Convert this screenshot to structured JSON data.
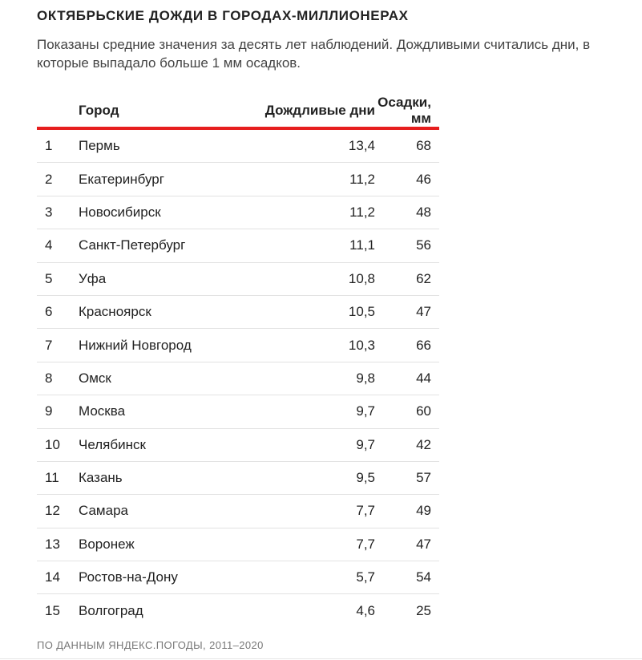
{
  "title": "ОКТЯБРЬСКИЕ ДОЖДИ В ГОРОДАХ-МИЛЛИОНЕРАХ",
  "subtitle": "Показаны средние значения за десять лет наблюдений. Дождливыми считались дни, в которые выпадало больше 1 мм осадков.",
  "table": {
    "headers": {
      "rank": "",
      "city": "Город",
      "days": "Дождливые дни",
      "precip": "Осадки, мм"
    },
    "rows": [
      {
        "rank": "1",
        "city": "Пермь",
        "days": "13,4",
        "precip": "68"
      },
      {
        "rank": "2",
        "city": "Екатеринбург",
        "days": "11,2",
        "precip": "46"
      },
      {
        "rank": "3",
        "city": "Новосибирск",
        "days": "11,2",
        "precip": "48"
      },
      {
        "rank": "4",
        "city": "Санкт-Петербург",
        "days": "11,1",
        "precip": "56"
      },
      {
        "rank": "5",
        "city": "Уфа",
        "days": "10,8",
        "precip": "62"
      },
      {
        "rank": "6",
        "city": "Красноярск",
        "days": "10,5",
        "precip": "47"
      },
      {
        "rank": "7",
        "city": "Нижний Новгород",
        "days": "10,3",
        "precip": "66"
      },
      {
        "rank": "8",
        "city": "Омск",
        "days": "9,8",
        "precip": "44"
      },
      {
        "rank": "9",
        "city": "Москва",
        "days": "9,7",
        "precip": "60"
      },
      {
        "rank": "10",
        "city": "Челябинск",
        "days": "9,7",
        "precip": "42"
      },
      {
        "rank": "11",
        "city": "Казань",
        "days": "9,5",
        "precip": "57"
      },
      {
        "rank": "12",
        "city": "Самара",
        "days": "7,7",
        "precip": "49"
      },
      {
        "rank": "13",
        "city": "Воронеж",
        "days": "7,7",
        "precip": "47"
      },
      {
        "rank": "14",
        "city": "Ростов-на-Дону",
        "days": "5,7",
        "precip": "54"
      },
      {
        "rank": "15",
        "city": "Волгоград",
        "days": "4,6",
        "precip": "25"
      }
    ]
  },
  "footer": "ПО ДАННЫМ ЯНДЕКС.ПОГОДЫ, 2011–2020",
  "colors": {
    "accent": "#e61e1e",
    "text": "#222222",
    "muted": "#777777"
  }
}
